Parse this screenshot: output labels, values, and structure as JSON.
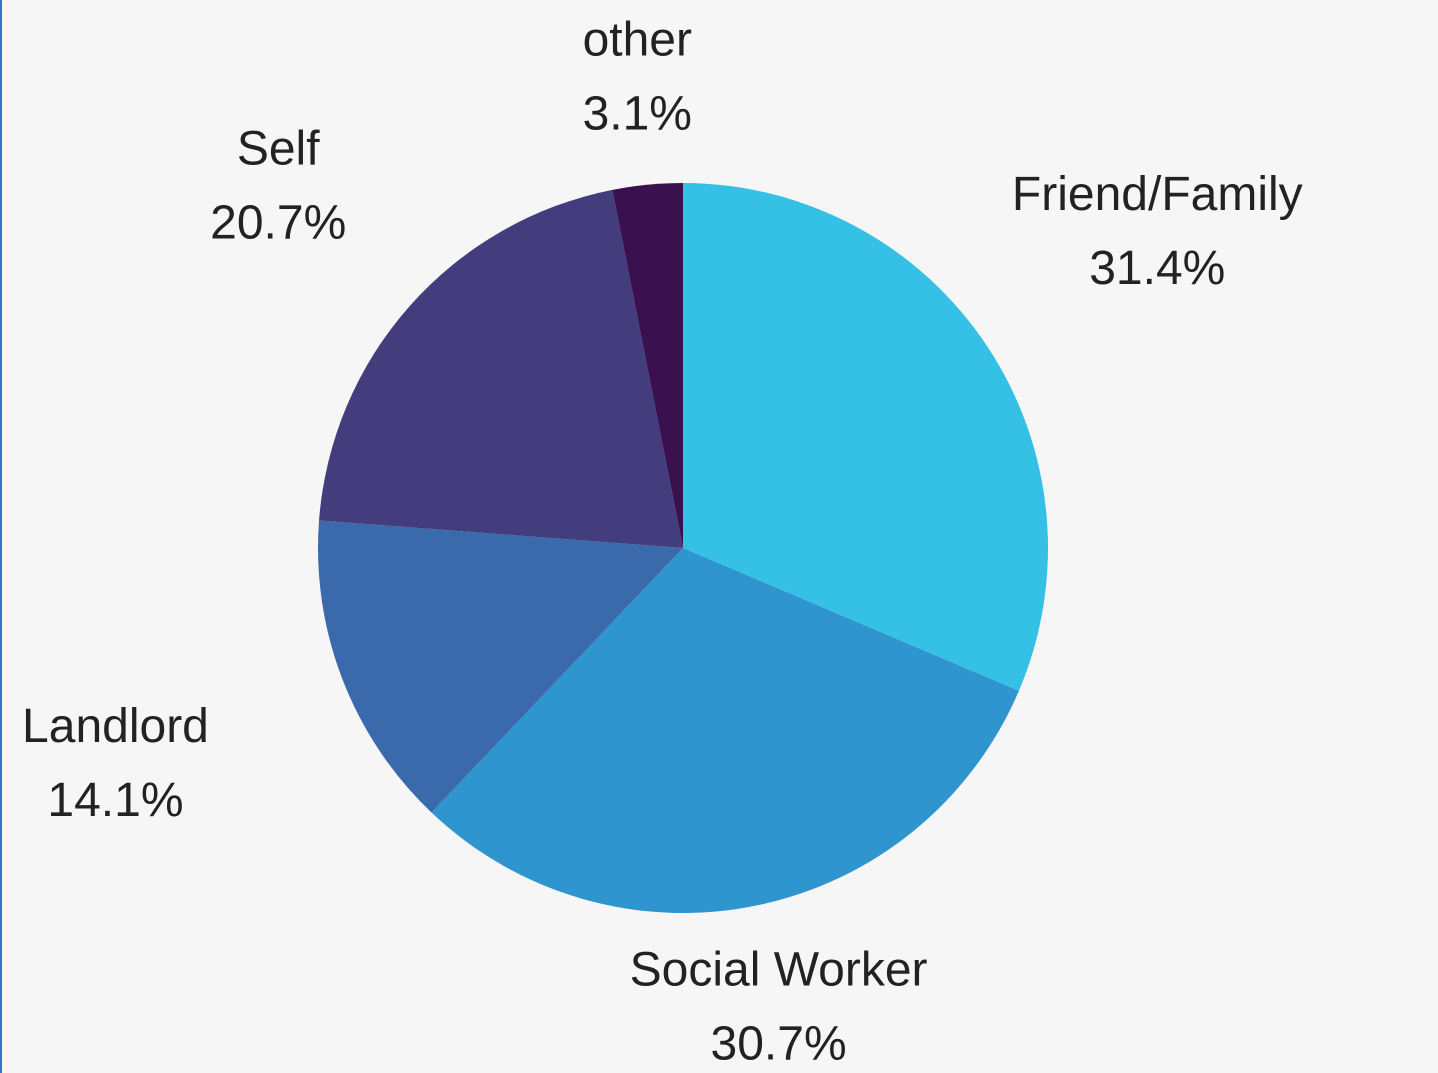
{
  "chart_data": {
    "type": "pie",
    "categories": [
      "Friend/Family",
      "Social Worker",
      "Landlord",
      "Self",
      "other"
    ],
    "values": [
      31.4,
      30.7,
      14.1,
      20.7,
      3.1
    ],
    "value_labels": [
      "31.4%",
      "30.7%",
      "14.1%",
      "20.7%",
      "3.1%"
    ],
    "colors": [
      "#35c0e5",
      "#2e95cf",
      "#3a6aac",
      "#433d7e",
      "#3a104e"
    ]
  }
}
